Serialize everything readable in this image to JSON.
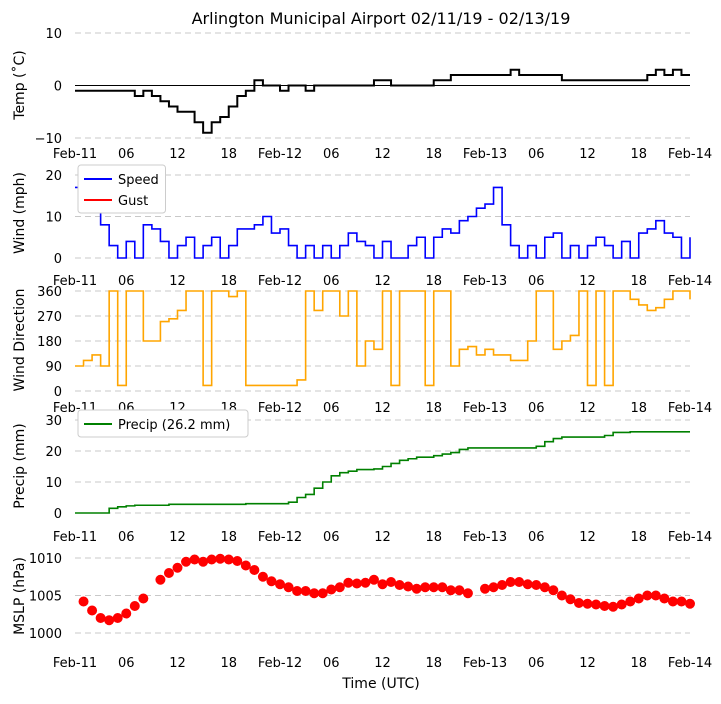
{
  "chart_data": {
    "type": "line",
    "title": "Arlington Municipal Airport 02/11/19 - 02/13/19",
    "xlabel": "Time (UTC)",
    "x_unit": "hours since Feb-11 00 UTC",
    "xlim": [
      0,
      72
    ],
    "xticks": [
      {
        "hour": 0,
        "label": "Feb-11"
      },
      {
        "hour": 6,
        "label": "06"
      },
      {
        "hour": 12,
        "label": "12"
      },
      {
        "hour": 18,
        "label": "18"
      },
      {
        "hour": 24,
        "label": "Feb-12"
      },
      {
        "hour": 30,
        "label": "06"
      },
      {
        "hour": 36,
        "label": "12"
      },
      {
        "hour": 42,
        "label": "18"
      },
      {
        "hour": 48,
        "label": "Feb-13"
      },
      {
        "hour": 54,
        "label": "06"
      },
      {
        "hour": 60,
        "label": "12"
      },
      {
        "hour": 66,
        "label": "18"
      },
      {
        "hour": 72,
        "label": "Feb-14"
      }
    ],
    "grid": "y dashed",
    "panels": [
      {
        "id": "temp",
        "ylabel": "Temp ($^\\circ$C)",
        "ylabel_text": "Temp (˚C)",
        "ylim": [
          -10,
          10
        ],
        "yticks": [
          {
            "v": -10,
            "label": "−10"
          },
          {
            "v": 0,
            "label": "0"
          },
          {
            "v": 10,
            "label": "10"
          }
        ],
        "zero_line": true,
        "series": [
          {
            "name": "Temperature",
            "color": "#000000",
            "style": "step",
            "values": [
              -1,
              -1,
              -1,
              -1,
              -1,
              -1,
              -1,
              -2,
              -1,
              -2,
              -3,
              -4,
              -5,
              -5,
              -7,
              -9,
              -7,
              -6,
              -4,
              -2,
              -1,
              1,
              0,
              0,
              -1,
              0,
              0,
              -1,
              0,
              0,
              0,
              0,
              0,
              0,
              0,
              1,
              1,
              0,
              0,
              0,
              0,
              0,
              1,
              1,
              2,
              2,
              2,
              2,
              2,
              2,
              2,
              3,
              2,
              2,
              2,
              2,
              2,
              1,
              1,
              1,
              1,
              1,
              1,
              1,
              1,
              1,
              1,
              2,
              3,
              2,
              3,
              2,
              2
            ]
          }
        ]
      },
      {
        "id": "wind",
        "ylabel_text": "Wind (mph)",
        "ylim": [
          0,
          20
        ],
        "yticks": [
          {
            "v": 0,
            "label": "0"
          },
          {
            "v": 10,
            "label": "10"
          },
          {
            "v": 20,
            "label": "20"
          }
        ],
        "legend": {
          "position": "upper-left",
          "entries": [
            {
              "label": "Speed",
              "color": "#0000ff"
            },
            {
              "label": "Gust",
              "color": "#ff0000"
            }
          ]
        },
        "series": [
          {
            "name": "Speed",
            "color": "#0000ff",
            "style": "step",
            "values": [
              17,
              12,
              13,
              8,
              3,
              0,
              4,
              0,
              8,
              7,
              4,
              0,
              3,
              5,
              0,
              3,
              5,
              0,
              3,
              7,
              7,
              8,
              10,
              6,
              7,
              3,
              0,
              3,
              0,
              3,
              0,
              3,
              6,
              4,
              3,
              0,
              4,
              0,
              0,
              3,
              5,
              0,
              5,
              7,
              6,
              9,
              10,
              12,
              13,
              17,
              8,
              3,
              0,
              3,
              0,
              5,
              6,
              0,
              3,
              0,
              3,
              5,
              3,
              0,
              4,
              0,
              6,
              7,
              9,
              6,
              5,
              0,
              5
            ]
          },
          {
            "name": "Gust",
            "color": "#ff0000",
            "style": "step",
            "values": []
          }
        ]
      },
      {
        "id": "dir",
        "ylabel_text": "Wind Direction",
        "ylim": [
          0,
          360
        ],
        "yticks": [
          {
            "v": 0,
            "label": "0"
          },
          {
            "v": 90,
            "label": "90"
          },
          {
            "v": 180,
            "label": "180"
          },
          {
            "v": 270,
            "label": "270"
          },
          {
            "v": 360,
            "label": "360"
          }
        ],
        "series": [
          {
            "name": "Direction",
            "color": "#ffa500",
            "style": "step",
            "values": [
              90,
              110,
              130,
              90,
              360,
              20,
              360,
              360,
              180,
              180,
              250,
              260,
              290,
              360,
              360,
              20,
              360,
              360,
              340,
              360,
              20,
              20,
              20,
              20,
              20,
              20,
              40,
              360,
              290,
              360,
              360,
              270,
              360,
              90,
              180,
              150,
              360,
              20,
              360,
              360,
              360,
              20,
              360,
              360,
              90,
              150,
              160,
              130,
              150,
              130,
              130,
              110,
              110,
              180,
              360,
              360,
              150,
              180,
              200,
              360,
              20,
              360,
              20,
              360,
              360,
              330,
              310,
              290,
              300,
              330,
              360,
              360,
              330
            ]
          }
        ]
      },
      {
        "id": "precip",
        "ylabel_text": "Precip (mm)",
        "ylim": [
          0,
          30
        ],
        "yticks": [
          {
            "v": 0,
            "label": "0"
          },
          {
            "v": 10,
            "label": "10"
          },
          {
            "v": 20,
            "label": "20"
          },
          {
            "v": 30,
            "label": "30"
          }
        ],
        "legend": {
          "position": "upper-left",
          "entries": [
            {
              "label": "Precip (26.2 mm)",
              "color": "#008000"
            }
          ]
        },
        "series": [
          {
            "name": "Precip",
            "color": "#008000",
            "style": "step",
            "values": [
              0,
              0,
              0,
              0,
              1.5,
              2,
              2.3,
              2.5,
              2.5,
              2.5,
              2.5,
              2.8,
              2.8,
              2.8,
              2.8,
              2.8,
              2.8,
              2.8,
              2.8,
              2.8,
              3,
              3,
              3,
              3,
              3,
              3.5,
              5,
              6,
              8,
              10,
              12,
              13,
              13.5,
              14,
              14,
              14.2,
              15,
              16,
              17,
              17.5,
              18,
              18,
              18.5,
              19,
              19.5,
              20.5,
              21,
              21,
              21,
              21,
              21,
              21,
              21,
              21,
              21.5,
              23,
              24,
              24.5,
              24.5,
              24.5,
              24.5,
              24.5,
              25,
              26,
              26,
              26.2,
              26.2,
              26.2,
              26.2,
              26.2,
              26.2,
              26.2,
              26.2
            ]
          }
        ]
      },
      {
        "id": "mslp",
        "ylabel_text": "MSLP (hPa)",
        "ylim": [
          1000,
          1010
        ],
        "yticks": [
          {
            "v": 1000,
            "label": "1000"
          },
          {
            "v": 1005,
            "label": "1005"
          },
          {
            "v": 1010,
            "label": "1010"
          }
        ],
        "series": [
          {
            "name": "MSLP",
            "color": "#ff0000",
            "style": "scatter",
            "values": [
              null,
              1004.2,
              1003,
              1002,
              1001.7,
              1002,
              1002.6,
              1003.6,
              1004.6,
              null,
              1007.1,
              1008,
              1008.7,
              1009.5,
              1009.8,
              1009.5,
              1009.8,
              1009.9,
              1009.8,
              1009.6,
              1009,
              1008.4,
              1007.5,
              1006.9,
              1006.5,
              1006.1,
              1005.6,
              1005.6,
              1005.3,
              1005.3,
              1005.8,
              1006.1,
              1006.7,
              1006.6,
              1006.7,
              1007.1,
              1006.5,
              1006.8,
              1006.4,
              1006.2,
              1005.9,
              1006.1,
              1006.1,
              1006.1,
              1005.7,
              1005.7,
              1005.3,
              null,
              1005.9,
              1006.1,
              1006.4,
              1006.8,
              1006.8,
              1006.5,
              1006.4,
              1006.1,
              1005.7,
              1005,
              1004.5,
              1004,
              1003.9,
              1003.8,
              1003.6,
              1003.5,
              1003.8,
              1004.2,
              1004.6,
              1005,
              1005,
              1004.6,
              1004.2,
              1004.2,
              1003.9
            ]
          }
        ]
      }
    ]
  }
}
